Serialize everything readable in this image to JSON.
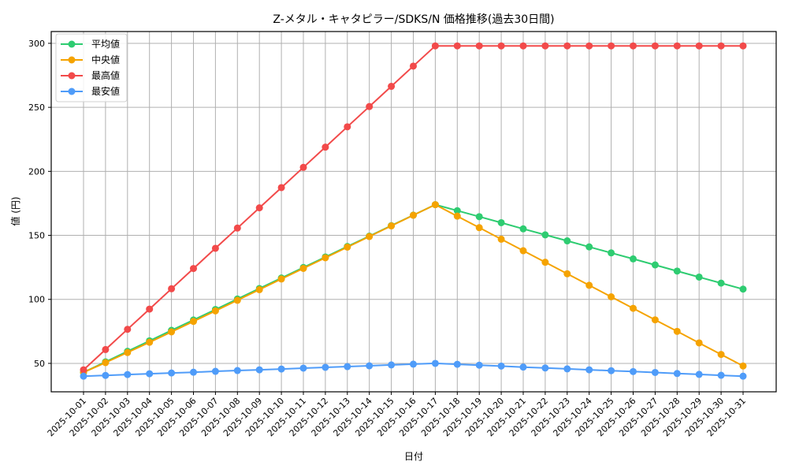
{
  "chart_data": {
    "type": "line",
    "title": "Z-メタル・キャタピラー/SDKS/N 価格推移(過去30日間)",
    "xlabel": "日付",
    "ylabel": "値 (円)",
    "ylim": [
      27.8,
      309.2
    ],
    "yticks": [
      50,
      100,
      150,
      200,
      250,
      300
    ],
    "grid": true,
    "legend_position": "upper left",
    "categories": [
      "2025-10-01",
      "2025-10-02",
      "2025-10-03",
      "2025-10-04",
      "2025-10-05",
      "2025-10-06",
      "2025-10-07",
      "2025-10-08",
      "2025-10-09",
      "2025-10-10",
      "2025-10-11",
      "2025-10-12",
      "2025-10-13",
      "2025-10-14",
      "2025-10-15",
      "2025-10-16",
      "2025-10-17",
      "2025-10-18",
      "2025-10-19",
      "2025-10-20",
      "2025-10-21",
      "2025-10-22",
      "2025-10-23",
      "2025-10-24",
      "2025-10-25",
      "2025-10-26",
      "2025-10-27",
      "2025-10-28",
      "2025-10-29",
      "2025-10-30",
      "2025-10-31"
    ],
    "series": [
      {
        "name": "平均値",
        "color": "#2ecc71",
        "values": [
          43.0,
          51.2,
          59.4,
          67.6,
          75.8,
          83.9,
          92.1,
          100.3,
          108.5,
          116.7,
          124.9,
          133.1,
          141.3,
          149.4,
          157.6,
          165.8,
          174.0,
          169.3,
          164.6,
          159.9,
          155.1,
          150.4,
          145.7,
          141.0,
          136.3,
          131.6,
          126.9,
          122.1,
          117.4,
          112.7,
          108.0
        ]
      },
      {
        "name": "中央値",
        "color": "#f5a300",
        "values": [
          43.0,
          50.6,
          58.5,
          66.5,
          74.6,
          82.8,
          91.0,
          99.3,
          107.6,
          115.9,
          124.2,
          132.5,
          140.8,
          149.1,
          157.4,
          165.7,
          174.0,
          165.0,
          156.0,
          147.0,
          138.0,
          129.0,
          120.0,
          111.0,
          102.0,
          93.0,
          84.0,
          75.0,
          66.0,
          57.0,
          48.0
        ]
      },
      {
        "name": "最高値",
        "color": "#f24a4a",
        "values": [
          45.0,
          60.8,
          76.6,
          92.4,
          108.3,
          124.1,
          139.9,
          155.7,
          171.5,
          187.3,
          203.1,
          218.9,
          234.8,
          250.6,
          266.4,
          282.2,
          298.0,
          298.0,
          298.0,
          298.0,
          298.0,
          298.0,
          298.0,
          298.0,
          298.0,
          298.0,
          298.0,
          298.0,
          298.0,
          298.0,
          298.0
        ]
      },
      {
        "name": "最安値",
        "color": "#4f9cf9",
        "values": [
          40.0,
          40.6,
          41.3,
          41.9,
          42.5,
          43.1,
          43.8,
          44.4,
          45.0,
          45.6,
          46.3,
          46.9,
          47.5,
          48.1,
          48.8,
          49.4,
          50.0,
          49.3,
          48.6,
          47.9,
          47.1,
          46.4,
          45.7,
          45.0,
          44.3,
          43.6,
          42.9,
          42.1,
          41.4,
          40.7,
          40.0
        ]
      }
    ]
  }
}
